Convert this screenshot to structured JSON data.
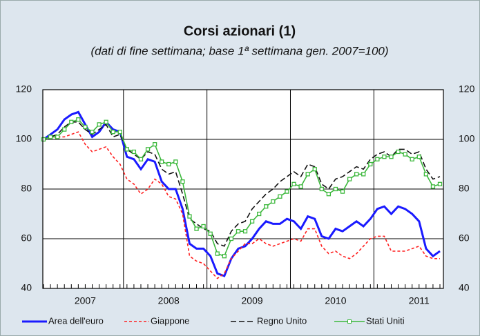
{
  "chart_data": {
    "type": "line",
    "title": "Corsi azionari (1)",
    "subtitle": "(dati di fine settimana; base 1ª settimana gen. 2007=100)",
    "categories": [
      null,
      null,
      null,
      null,
      null,
      null,
      "2007",
      null,
      null,
      null,
      null,
      null,
      null,
      null,
      null,
      null,
      null,
      null,
      "2008",
      null,
      null,
      null,
      null,
      null,
      null,
      null,
      null,
      null,
      null,
      null,
      "2009",
      null,
      null,
      null,
      null,
      null,
      null,
      null,
      null,
      null,
      null,
      null,
      "2010",
      null,
      null,
      null,
      null,
      null,
      null,
      null,
      null,
      null,
      null,
      null,
      "2011",
      null,
      null,
      null
    ],
    "ylim": [
      40,
      120
    ],
    "yticks": [
      40,
      60,
      80,
      100,
      120
    ],
    "grid": true,
    "legend": "bottom",
    "series": [
      {
        "name": "Area dell'euro",
        "color": "#1a1aff",
        "style": "solid",
        "values": [
          100,
          102,
          104,
          108,
          110,
          111,
          106,
          101,
          103,
          107,
          104,
          103,
          93,
          92,
          88,
          92,
          91,
          83,
          80,
          80,
          72,
          58,
          56,
          56,
          53,
          46,
          45,
          52,
          56,
          57,
          60,
          64,
          67,
          66,
          66,
          68,
          67,
          64,
          69,
          68,
          61,
          60,
          64,
          63,
          65,
          67,
          65,
          68,
          72,
          73,
          70,
          73,
          72,
          70,
          67,
          56,
          53,
          55
        ]
      },
      {
        "name": "Giappone",
        "color": "#ff2020",
        "style": "dashed",
        "values": [
          100,
          101,
          101,
          101,
          102,
          103,
          98,
          95,
          96,
          97,
          93,
          90,
          84,
          82,
          78,
          80,
          84,
          82,
          77,
          76,
          70,
          53,
          51,
          50,
          47,
          44,
          46,
          52,
          55,
          58,
          58,
          60,
          58,
          57,
          58,
          59,
          60,
          59,
          64,
          64,
          57,
          54,
          55,
          53,
          52,
          54,
          57,
          60,
          61,
          61,
          55,
          55,
          55,
          56,
          57,
          53,
          52,
          52
        ]
      },
      {
        "name": "Regno Unito",
        "color": "#111111",
        "style": "longdash",
        "values": [
          100,
          101,
          102,
          105,
          107,
          107,
          104,
          102,
          104,
          106,
          101,
          102,
          96,
          94,
          92,
          95,
          94,
          88,
          86,
          87,
          78,
          68,
          66,
          64,
          63,
          58,
          57,
          63,
          66,
          67,
          72,
          75,
          78,
          80,
          83,
          85,
          87,
          85,
          90,
          89,
          82,
          80,
          84,
          85,
          87,
          89,
          88,
          92,
          94,
          95,
          93,
          96,
          96,
          94,
          95,
          88,
          84,
          85
        ]
      },
      {
        "name": "Stati Uniti",
        "color": "#3cb83c",
        "style": "marker",
        "values": [
          100,
          101,
          101,
          104,
          107,
          108,
          105,
          103,
          106,
          107,
          103,
          103,
          96,
          95,
          92,
          96,
          98,
          91,
          90,
          91,
          83,
          69,
          64,
          65,
          62,
          54,
          53,
          60,
          63,
          63,
          67,
          70,
          73,
          75,
          77,
          79,
          82,
          81,
          86,
          88,
          80,
          78,
          80,
          79,
          84,
          86,
          86,
          90,
          92,
          93,
          93,
          95,
          94,
          92,
          93,
          86,
          81,
          82
        ]
      }
    ]
  }
}
